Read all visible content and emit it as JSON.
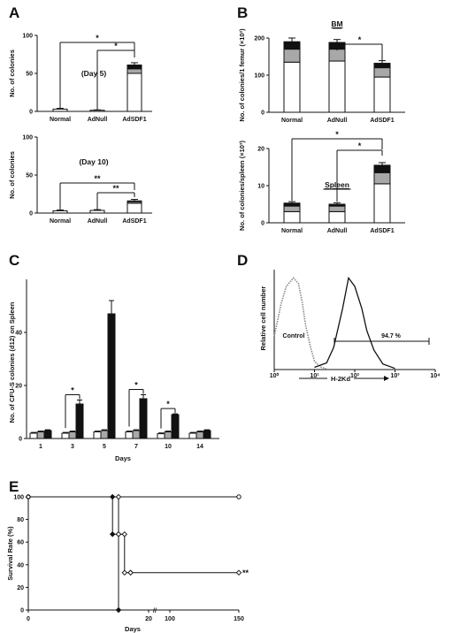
{
  "figure": {
    "panel_labels": [
      "A",
      "B",
      "C",
      "D",
      "E"
    ]
  },
  "chart_data": [
    {
      "id": "A1",
      "panel": "A",
      "type": "bar",
      "stacked": true,
      "annotation": "(Day 5)",
      "categories": [
        "Normal",
        "AdNull",
        "AdSDF1"
      ],
      "series": [
        {
          "values": [
            3,
            1.5,
            50
          ],
          "color": "#ffffff"
        },
        {
          "values": [
            0,
            0,
            6
          ],
          "color": "#a8a8a8"
        },
        {
          "values": [
            0,
            0,
            5
          ],
          "color": "#111111"
        }
      ],
      "errors": [
        1,
        0.5,
        3
      ],
      "ylabel": "No. of colonies",
      "ylim": [
        0,
        100
      ],
      "yticks": [
        0,
        50,
        100
      ],
      "significance": [
        {
          "from": 0,
          "to": 2,
          "label": "*"
        },
        {
          "from": 1,
          "to": 2,
          "label": "*"
        }
      ]
    },
    {
      "id": "A2",
      "panel": "A",
      "type": "bar",
      "stacked": true,
      "annotation": "(Day 10)",
      "categories": [
        "Normal",
        "AdNull",
        "AdSDF1"
      ],
      "series": [
        {
          "values": [
            3,
            3.5,
            13
          ],
          "color": "#ffffff"
        },
        {
          "values": [
            0,
            0,
            2
          ],
          "color": "#a8a8a8"
        },
        {
          "values": [
            0,
            0,
            1
          ],
          "color": "#111111"
        }
      ],
      "errors": [
        1,
        1,
        2
      ],
      "ylabel": "No. of colonies",
      "ylim": [
        0,
        100
      ],
      "yticks": [
        0,
        50,
        100
      ],
      "significance": [
        {
          "from": 0,
          "to": 2,
          "label": "**"
        },
        {
          "from": 1,
          "to": 2,
          "label": "**"
        }
      ]
    },
    {
      "id": "B1",
      "panel": "B",
      "type": "bar",
      "stacked": true,
      "annotation": "BM",
      "categories": [
        "Normal",
        "AdNull",
        "AdSDF1"
      ],
      "series": [
        {
          "values": [
            135,
            138,
            95
          ],
          "color": "#ffffff"
        },
        {
          "values": [
            35,
            32,
            25
          ],
          "color": "#a8a8a8"
        },
        {
          "values": [
            20,
            18,
            12
          ],
          "color": "#111111"
        }
      ],
      "errors": [
        10,
        8,
        7
      ],
      "ylabel": "No. of colonies/1 femur (×10²)",
      "ylim": [
        0,
        200
      ],
      "yticks": [
        0,
        100,
        200
      ],
      "significance": [
        {
          "from": 1,
          "to": 2,
          "label": "*"
        }
      ]
    },
    {
      "id": "B2",
      "panel": "B",
      "type": "bar",
      "stacked": true,
      "annotation": "Spleen",
      "categories": [
        "Normal",
        "AdNull",
        "AdSDF1"
      ],
      "series": [
        {
          "values": [
            3,
            3,
            10.5
          ],
          "color": "#ffffff"
        },
        {
          "values": [
            1.5,
            1.5,
            3
          ],
          "color": "#a8a8a8"
        },
        {
          "values": [
            0.8,
            0.5,
            2
          ],
          "color": "#111111"
        }
      ],
      "errors": [
        0.4,
        0.4,
        0.7
      ],
      "ylabel": "No. of colonies/spleen (×10³)",
      "ylim": [
        0,
        20
      ],
      "yticks": [
        0,
        10,
        20
      ],
      "significance": [
        {
          "from": 0,
          "to": 2,
          "label": "*"
        },
        {
          "from": 1,
          "to": 2,
          "label": "*"
        }
      ]
    },
    {
      "id": "C",
      "panel": "C",
      "type": "bar",
      "categories": [
        "1",
        "3",
        "5",
        "7",
        "10",
        "14"
      ],
      "series": [
        {
          "values": [
            2,
            2,
            2.5,
            2.5,
            1.8,
            2
          ],
          "color": "#ffffff"
        },
        {
          "values": [
            2.5,
            2.5,
            3,
            3,
            2.5,
            2.5
          ],
          "color": "#a8a8a8"
        },
        {
          "values": [
            3,
            13,
            47,
            15,
            9,
            3
          ],
          "color": "#111111"
        }
      ],
      "errors": [
        [
          0.3,
          0.3,
          0.3,
          0.3,
          0.3,
          0.3
        ],
        [
          0.3,
          0.3,
          0.3,
          0.3,
          0.3,
          0.3
        ],
        [
          0.3,
          1.5,
          5,
          1.5,
          0.3,
          0.3
        ]
      ],
      "xlabel": "Days",
      "ylabel": "No. of CFU-S colonies (d12) on Spleen",
      "ylim": [
        0,
        60
      ],
      "yticks": [
        0,
        20,
        40
      ],
      "significance_days": [
        "3",
        "7",
        "10"
      ],
      "significance_label": "*"
    },
    {
      "id": "D",
      "panel": "D",
      "type": "line",
      "ylabel": "Relative cell number",
      "xlabel": "H-2Kd",
      "xscale": "log",
      "xticks": [
        "10⁰",
        "10¹",
        "10²",
        "10³",
        "10⁴"
      ],
      "gate_label": "94.7 %",
      "control_label": "Control",
      "series": [
        {
          "name": "Control",
          "style": "dotted",
          "color": "#888888",
          "x": [
            1,
            1.5,
            2,
            3,
            4,
            5,
            6,
            8,
            10,
            14,
            20
          ],
          "y": [
            60,
            120,
            150,
            165,
            155,
            120,
            80,
            40,
            15,
            5,
            1
          ]
        },
        {
          "name": "H-2Kd",
          "style": "solid",
          "color": "#111111",
          "x": [
            10,
            20,
            30,
            50,
            70,
            100,
            150,
            200,
            300,
            500,
            1000
          ],
          "y": [
            4,
            12,
            40,
            110,
            165,
            150,
            110,
            70,
            35,
            10,
            2
          ]
        }
      ]
    },
    {
      "id": "E",
      "panel": "E",
      "type": "line",
      "xlabel": "Days",
      "ylabel": "Survival Rate (%)",
      "ylim": [
        0,
        100
      ],
      "yticks": [
        0,
        20,
        40,
        60,
        80,
        100
      ],
      "xticks": [
        "0",
        "20",
        "100",
        "150"
      ],
      "axis_break": true,
      "significance": "**",
      "series": [
        {
          "marker": "open-circle",
          "x": [
            0,
            150
          ],
          "y": [
            100,
            100
          ]
        },
        {
          "marker": "filled-diamond",
          "x": [
            0,
            14,
            14,
            15,
            15
          ],
          "y": [
            100,
            100,
            67,
            67,
            0
          ]
        },
        {
          "marker": "open-diamond",
          "x": [
            0,
            15,
            15,
            16,
            16,
            17,
            17,
            150
          ],
          "y": [
            100,
            100,
            67,
            67,
            33,
            33,
            33,
            33
          ]
        }
      ]
    }
  ]
}
